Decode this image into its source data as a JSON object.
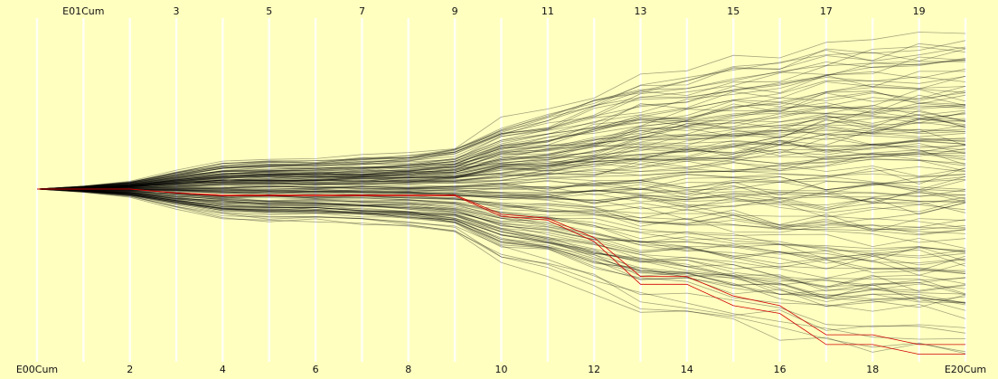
{
  "chart_data": {
    "type": "parallel-coordinates",
    "background": "#ffffc0",
    "colors": {
      "default_line": "#000000",
      "highlight_line": "#d00000",
      "axis": "#ffffff"
    },
    "axes": [
      "E00Cum",
      "E01Cum",
      "2",
      "3",
      "4",
      "5",
      "6",
      "7",
      "8",
      "9",
      "10",
      "11",
      "12",
      "13",
      "14",
      "15",
      "16",
      "17",
      "18",
      "19",
      "E20Cum"
    ],
    "top_labels": [
      "E01Cum",
      "3",
      "5",
      "7",
      "9",
      "11",
      "13",
      "15",
      "17",
      "19"
    ],
    "bottom_labels": [
      "E00Cum",
      "2",
      "4",
      "6",
      "8",
      "10",
      "12",
      "14",
      "16",
      "18",
      "E20Cum"
    ],
    "series_line_count": 140,
    "highlight_series": [
      {
        "values": [
          0,
          0,
          0,
          -0.4,
          -0.6,
          -0.6,
          -0.6,
          -0.6,
          -0.6,
          -0.6,
          -2.6,
          -3.0,
          -5.0,
          -9.0,
          -9.0,
          -11.0,
          -12.0,
          -15.0,
          -15.0,
          -16.0,
          -16.0
        ]
      },
      {
        "values": [
          0,
          0,
          0,
          -0.4,
          -0.7,
          -0.7,
          -0.7,
          -0.7,
          -0.7,
          -0.7,
          -2.8,
          -3.2,
          -5.4,
          -9.8,
          -9.8,
          -12.0,
          -12.8,
          -16.0,
          -16.0,
          -17.0,
          -17.0
        ]
      }
    ]
  }
}
